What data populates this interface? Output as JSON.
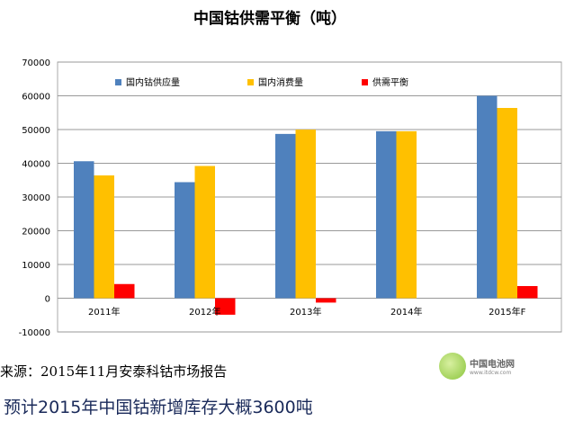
{
  "chart_data": {
    "type": "bar",
    "title": "中国钴供需平衡（吨）",
    "categories": [
      "2011年",
      "2012年",
      "2013年",
      "2014年",
      "2015年F"
    ],
    "series": [
      {
        "name": "国内钴供应量",
        "color": "#4f81bd",
        "values": [
          40600,
          34400,
          48700,
          49500,
          60000
        ]
      },
      {
        "name": "国内消费量",
        "color": "#ffc000",
        "values": [
          36400,
          39200,
          50000,
          49500,
          56400
        ]
      },
      {
        "name": "供需平衡",
        "color": "#ff0000",
        "values": [
          4200,
          -4900,
          -1300,
          0,
          3600
        ]
      }
    ],
    "ylim": [
      -10000,
      70000
    ],
    "yticks": [
      -10000,
      0,
      10000,
      20000,
      30000,
      40000,
      50000,
      60000,
      70000
    ],
    "grid": true,
    "legend": "top"
  },
  "footer": {
    "source": "来源：2015年11月安泰科钴市场报告",
    "note": "预计2015年中国钴新增库存大概3600吨",
    "logo_name": "中国电池网",
    "logo_url": "www.itdcw.com"
  }
}
